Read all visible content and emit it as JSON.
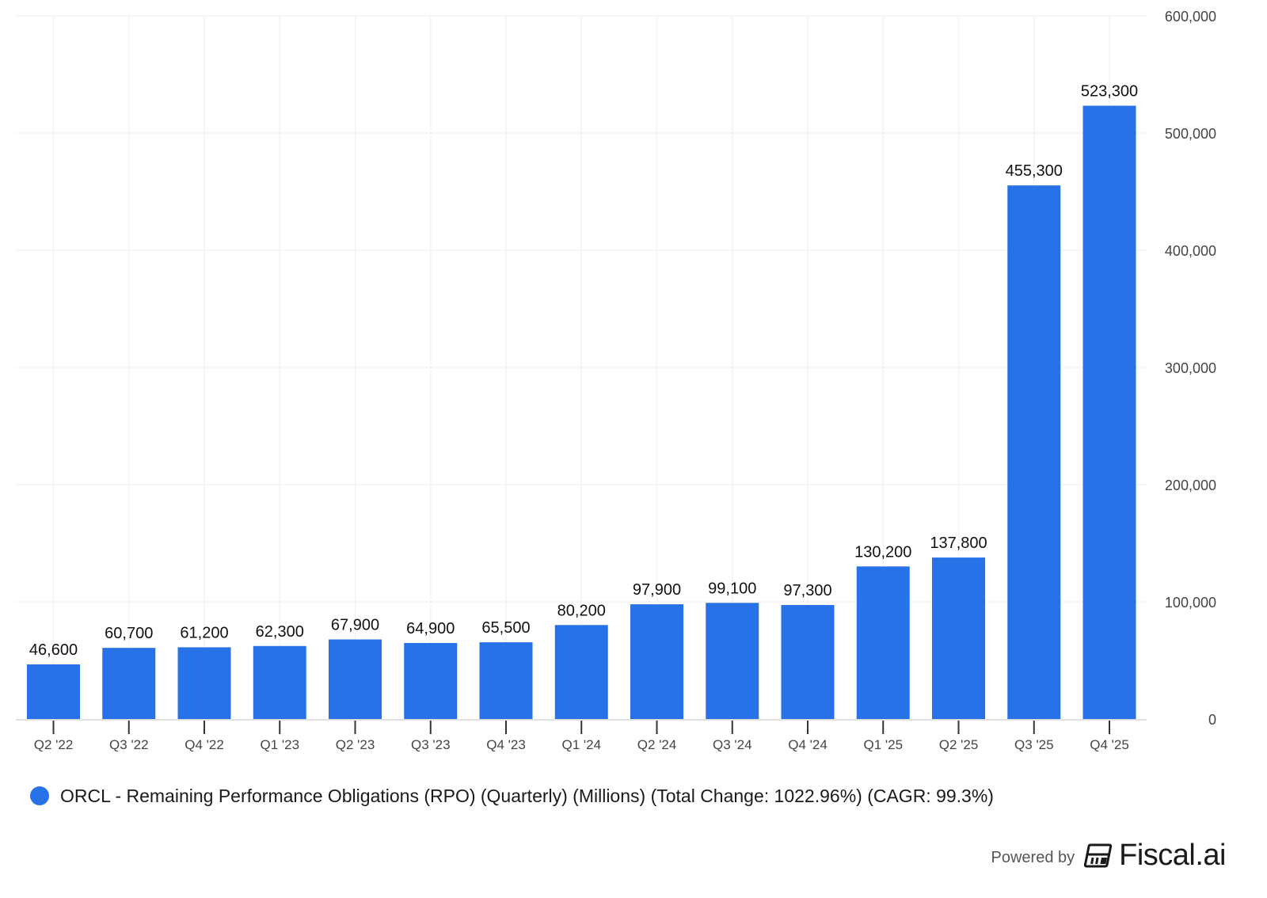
{
  "chart_data": {
    "type": "bar",
    "title": "",
    "xlabel": "",
    "ylabel": "",
    "categories": [
      "Q2 '22",
      "Q3 '22",
      "Q4 '22",
      "Q1 '23",
      "Q2 '23",
      "Q3 '23",
      "Q4 '23",
      "Q1 '24",
      "Q2 '24",
      "Q3 '24",
      "Q4 '24",
      "Q1 '25",
      "Q2 '25",
      "Q3 '25",
      "Q4 '25"
    ],
    "values": [
      46600,
      60700,
      61200,
      62300,
      67900,
      64900,
      65500,
      80200,
      97900,
      99100,
      97300,
      130200,
      137800,
      455300,
      523300
    ],
    "value_labels": [
      "46,600",
      "60,700",
      "61,200",
      "62,300",
      "67,900",
      "64,900",
      "65,500",
      "80,200",
      "97,900",
      "99,100",
      "97,300",
      "130,200",
      "137,800",
      "455,300",
      "523,300"
    ],
    "ylim": [
      0,
      600000
    ],
    "yticks": [
      0,
      100000,
      200000,
      300000,
      400000,
      500000,
      600000
    ],
    "ytick_labels": [
      "0",
      "100,000",
      "200,000",
      "300,000",
      "400,000",
      "500,000",
      "600,000"
    ],
    "y_axis_side": "right",
    "grid": true,
    "series": [
      {
        "name": "ORCL - Remaining Performance Obligations (RPO) (Quarterly) (Millions) (Total Change: 1022.96%) (CAGR: 99.3%)",
        "color": "#2872e8"
      }
    ],
    "legend_position": "bottom-left"
  },
  "legend": {
    "label": "ORCL - Remaining Performance Obligations (RPO) (Quarterly) (Millions) (Total Change: 1022.96%) (CAGR: 99.3%)",
    "color": "#2872e8"
  },
  "footer": {
    "powered_by": "Powered by",
    "brand": "Fiscal.ai",
    "logo_icon": "fiscal-ai-logo-icon"
  },
  "colors": {
    "bar": "#2872e8",
    "grid": "#f3f3f3",
    "axis": "#e0e0e0",
    "tick": "#333333",
    "label": "#111111",
    "tick_label": "#444444"
  }
}
